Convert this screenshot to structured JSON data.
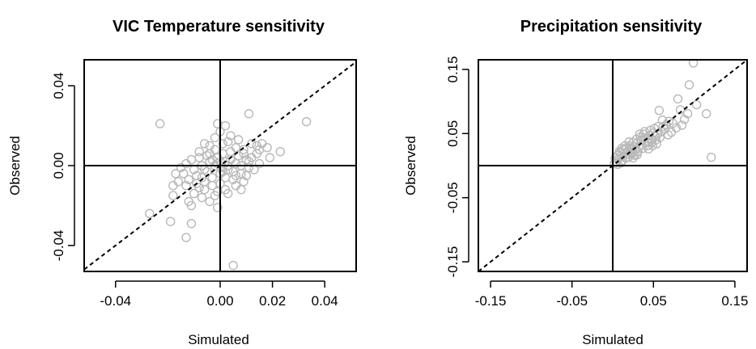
{
  "chart_data": [
    {
      "type": "scatter",
      "title": "VIC Temperature sensitivity",
      "xlabel": "Simulated",
      "ylabel": "Observed",
      "xlim": [
        -0.052,
        0.052
      ],
      "ylim": [
        -0.053,
        0.053
      ],
      "xticks": [
        -0.04,
        0.0,
        0.02,
        0.04
      ],
      "xtick_labels": [
        "-0.04",
        "0.00",
        "0.02",
        "0.04"
      ],
      "yticks": [
        -0.04,
        0.0,
        0.04
      ],
      "ytick_labels": [
        "-0.04",
        "0.00",
        "0.04"
      ],
      "reference_lines": {
        "x0": true,
        "y0": true,
        "one_to_one": "dashed"
      },
      "series": [
        {
          "color": "#b8b8b8",
          "points": [
            [
              -0.023,
              0.021
            ],
            [
              -0.001,
              0.021
            ],
            [
              0.002,
              0.02
            ],
            [
              0.011,
              0.026
            ],
            [
              0.033,
              0.022
            ],
            [
              0.023,
              0.007
            ],
            [
              0.014,
              0.01
            ],
            [
              0.018,
              0.009
            ],
            [
              -0.027,
              -0.024
            ],
            [
              -0.019,
              -0.028
            ],
            [
              -0.013,
              -0.036
            ],
            [
              -0.011,
              -0.029
            ],
            [
              0.005,
              -0.05
            ],
            [
              -0.001,
              -0.021
            ],
            [
              -0.011,
              -0.02
            ],
            [
              -0.018,
              -0.015
            ],
            [
              -0.017,
              -0.004
            ],
            [
              -0.013,
              0.001
            ],
            [
              -0.008,
              0.004
            ],
            [
              -0.004,
              0.01
            ],
            [
              -0.002,
              0.014
            ],
            [
              0.0,
              0.017
            ],
            [
              0.003,
              0.012
            ],
            [
              0.006,
              0.009
            ],
            [
              0.009,
              0.006
            ],
            [
              0.012,
              0.004
            ],
            [
              0.015,
              0.001
            ],
            [
              0.011,
              -0.001
            ],
            [
              0.008,
              -0.004
            ],
            [
              0.005,
              -0.007
            ],
            [
              0.002,
              -0.012
            ],
            [
              -0.002,
              -0.015
            ],
            [
              -0.006,
              -0.012
            ],
            [
              -0.009,
              -0.009
            ],
            [
              -0.012,
              -0.007
            ],
            [
              -0.014,
              -0.004
            ],
            [
              -0.01,
              -0.002
            ],
            [
              -0.007,
              0.0
            ],
            [
              -0.004,
              0.002
            ],
            [
              -0.001,
              0.004
            ],
            [
              0.001,
              0.006
            ],
            [
              0.004,
              0.003
            ],
            [
              0.006,
              0.001
            ],
            [
              0.003,
              -0.002
            ],
            [
              0.0,
              -0.004
            ],
            [
              -0.003,
              -0.006
            ],
            [
              -0.005,
              -0.003
            ],
            [
              -0.002,
              0.0
            ],
            [
              0.001,
              -0.001
            ],
            [
              0.002,
              0.002
            ],
            [
              -0.001,
              0.001
            ],
            [
              0.004,
              0.007
            ],
            [
              0.007,
              0.005
            ],
            [
              0.01,
              0.003
            ],
            [
              0.013,
              -0.002
            ],
            [
              0.009,
              -0.008
            ],
            [
              0.006,
              -0.01
            ],
            [
              0.003,
              -0.014
            ],
            [
              0.0,
              -0.009
            ],
            [
              -0.003,
              -0.01
            ],
            [
              -0.006,
              -0.008
            ],
            [
              -0.008,
              -0.011
            ],
            [
              -0.01,
              -0.014
            ],
            [
              -0.007,
              -0.016
            ],
            [
              -0.004,
              -0.018
            ],
            [
              -0.001,
              -0.013
            ],
            [
              0.002,
              -0.006
            ],
            [
              0.005,
              -0.003
            ],
            [
              0.008,
              0.0
            ],
            [
              0.011,
              0.002
            ],
            [
              0.014,
              0.006
            ],
            [
              0.016,
              0.011
            ],
            [
              0.019,
              0.004
            ],
            [
              0.004,
              0.015
            ],
            [
              0.001,
              0.011
            ],
            [
              -0.002,
              0.008
            ],
            [
              -0.005,
              0.005
            ],
            [
              -0.008,
              0.007
            ],
            [
              -0.011,
              0.003
            ],
            [
              -0.015,
              -0.001
            ],
            [
              -0.016,
              -0.008
            ],
            [
              -0.013,
              -0.01
            ],
            [
              -0.009,
              -0.005
            ],
            [
              -0.006,
              -0.002
            ],
            [
              -0.003,
              0.003
            ],
            [
              0.0,
              0.002
            ],
            [
              0.003,
              0.0
            ],
            [
              0.006,
              -0.005
            ],
            [
              0.009,
              0.008
            ],
            [
              0.012,
              0.011
            ],
            [
              0.007,
              0.013
            ],
            [
              -0.004,
              0.006
            ],
            [
              -0.007,
              -0.006
            ],
            [
              0.001,
              -0.003
            ],
            [
              -0.012,
              -0.018
            ],
            [
              0.008,
              -0.012
            ],
            [
              0.015,
              0.008
            ],
            [
              -0.018,
              -0.01
            ],
            [
              0.01,
              -0.005
            ],
            [
              -0.006,
              0.011
            ]
          ]
        }
      ]
    },
    {
      "type": "scatter",
      "title": "Precipitation sensitivity",
      "xlabel": "Simulated",
      "ylabel": "Observed",
      "xlim": [
        -0.165,
        0.165
      ],
      "ylim": [
        -0.165,
        0.165
      ],
      "xticks": [
        -0.15,
        -0.05,
        0.05,
        0.15
      ],
      "xtick_labels": [
        "-0.15",
        "-0.05",
        "0.05",
        "0.15"
      ],
      "yticks": [
        -0.15,
        -0.05,
        0.05,
        0.15
      ],
      "ytick_labels": [
        "-0.15",
        "-0.05",
        "0.05",
        "0.15"
      ],
      "reference_lines": {
        "x0": true,
        "y0": true,
        "one_to_one": "dashed"
      },
      "series": [
        {
          "color": "#b8b8b8",
          "points": [
            [
              0.099,
              0.16
            ],
            [
              0.094,
              0.126
            ],
            [
              0.08,
              0.104
            ],
            [
              0.103,
              0.095
            ],
            [
              0.083,
              0.087
            ],
            [
              0.121,
              0.013
            ],
            [
              0.115,
              0.081
            ],
            [
              0.057,
              0.086
            ],
            [
              0.069,
              0.069
            ],
            [
              0.064,
              0.057
            ],
            [
              0.072,
              0.052
            ],
            [
              0.085,
              0.063
            ],
            [
              0.078,
              0.059
            ],
            [
              0.05,
              0.051
            ],
            [
              0.045,
              0.047
            ],
            [
              0.04,
              0.043
            ],
            [
              0.035,
              0.04
            ],
            [
              0.03,
              0.035
            ],
            [
              0.026,
              0.03
            ],
            [
              0.022,
              0.026
            ],
            [
              0.018,
              0.022
            ],
            [
              0.014,
              0.019
            ],
            [
              0.01,
              0.015
            ],
            [
              0.007,
              0.011
            ],
            [
              0.004,
              0.006
            ],
            [
              0.002,
              0.003
            ],
            [
              0.012,
              0.008
            ],
            [
              0.016,
              0.012
            ],
            [
              0.02,
              0.017
            ],
            [
              0.024,
              0.021
            ],
            [
              0.028,
              0.024
            ],
            [
              0.032,
              0.029
            ],
            [
              0.036,
              0.032
            ],
            [
              0.042,
              0.037
            ],
            [
              0.047,
              0.041
            ],
            [
              0.052,
              0.045
            ],
            [
              0.055,
              0.049
            ],
            [
              0.06,
              0.053
            ],
            [
              0.062,
              0.061
            ],
            [
              0.066,
              0.064
            ],
            [
              0.074,
              0.066
            ],
            [
              0.038,
              0.049
            ],
            [
              0.034,
              0.045
            ],
            [
              0.029,
              0.041
            ],
            [
              0.025,
              0.036
            ],
            [
              0.021,
              0.031
            ],
            [
              0.017,
              0.027
            ],
            [
              0.013,
              0.025
            ],
            [
              0.009,
              0.02
            ],
            [
              0.006,
              0.016
            ],
            [
              0.019,
              0.013
            ],
            [
              0.023,
              0.018
            ],
            [
              0.027,
              0.016
            ],
            [
              0.031,
              0.022
            ],
            [
              0.037,
              0.027
            ],
            [
              0.043,
              0.031
            ],
            [
              0.048,
              0.036
            ],
            [
              0.053,
              0.04
            ],
            [
              0.058,
              0.044
            ],
            [
              0.068,
              0.048
            ],
            [
              0.015,
              0.031
            ],
            [
              0.02,
              0.037
            ],
            [
              0.011,
              0.027
            ],
            [
              0.008,
              0.022
            ],
            [
              0.003,
              0.012
            ],
            [
              0.046,
              0.055
            ],
            [
              0.051,
              0.058
            ],
            [
              0.039,
              0.053
            ],
            [
              0.033,
              0.049
            ],
            [
              0.056,
              0.061
            ],
            [
              0.061,
              0.071
            ],
            [
              0.044,
              0.026
            ],
            [
              0.049,
              0.031
            ],
            [
              0.054,
              0.034
            ],
            [
              0.025,
              0.012
            ],
            [
              0.03,
              0.017
            ],
            [
              0.006,
              0.002
            ],
            [
              0.01,
              0.004
            ],
            [
              0.088,
              0.072
            ],
            [
              0.092,
              0.081
            ]
          ]
        }
      ]
    }
  ]
}
